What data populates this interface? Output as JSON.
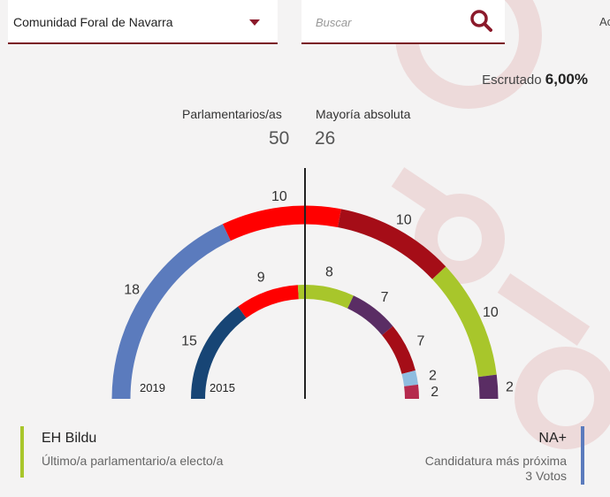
{
  "header": {
    "region": "Comunidad Foral de Navarra",
    "search_placeholder": "Buscar",
    "clipped_text": "Ac"
  },
  "summary": {
    "escrutado_label": "Escrutado",
    "escrutado_value": "6,00%",
    "seats_label": "Parlamentarios/as",
    "seats_value": "50",
    "majority_label": "Mayoría absoluta",
    "majority_value": "26"
  },
  "chart_data": {
    "type": "hemicycle",
    "total_seats": 50,
    "outer": {
      "label": "2019",
      "segments": [
        {
          "seats": 18,
          "color": "#5b7bbd",
          "label": "18"
        },
        {
          "seats": 10,
          "color": "#ff0000",
          "label": "10"
        },
        {
          "seats": 10,
          "color": "#a50d17",
          "label": "10"
        },
        {
          "seats": 10,
          "color": "#a8c62b",
          "label": "10"
        },
        {
          "seats": 2,
          "color": "#5a2d64",
          "label": "2"
        }
      ]
    },
    "inner": {
      "label": "2015",
      "segments": [
        {
          "seats": 15,
          "color": "#174575",
          "label": "15"
        },
        {
          "seats": 9,
          "color": "#ff0000",
          "label": "9"
        },
        {
          "seats": 8,
          "color": "#a8c62b",
          "label": "8"
        },
        {
          "seats": 7,
          "color": "#5a2d64",
          "label": "7"
        },
        {
          "seats": 7,
          "color": "#a50d17",
          "label": "7"
        },
        {
          "seats": 2,
          "color": "#8fbde0",
          "label": "2"
        },
        {
          "seats": 2,
          "color": "#b52a4e",
          "label": "2"
        }
      ]
    }
  },
  "legend": {
    "left_party": "EH Bildu",
    "left_sub": "Último/a parlamentario/a electo/a",
    "left_color": "#a8c62b",
    "right_party": "NA+",
    "right_sub1": "Candidatura más próxima",
    "right_sub2": "3 Votos",
    "right_color": "#5b7bbd"
  }
}
